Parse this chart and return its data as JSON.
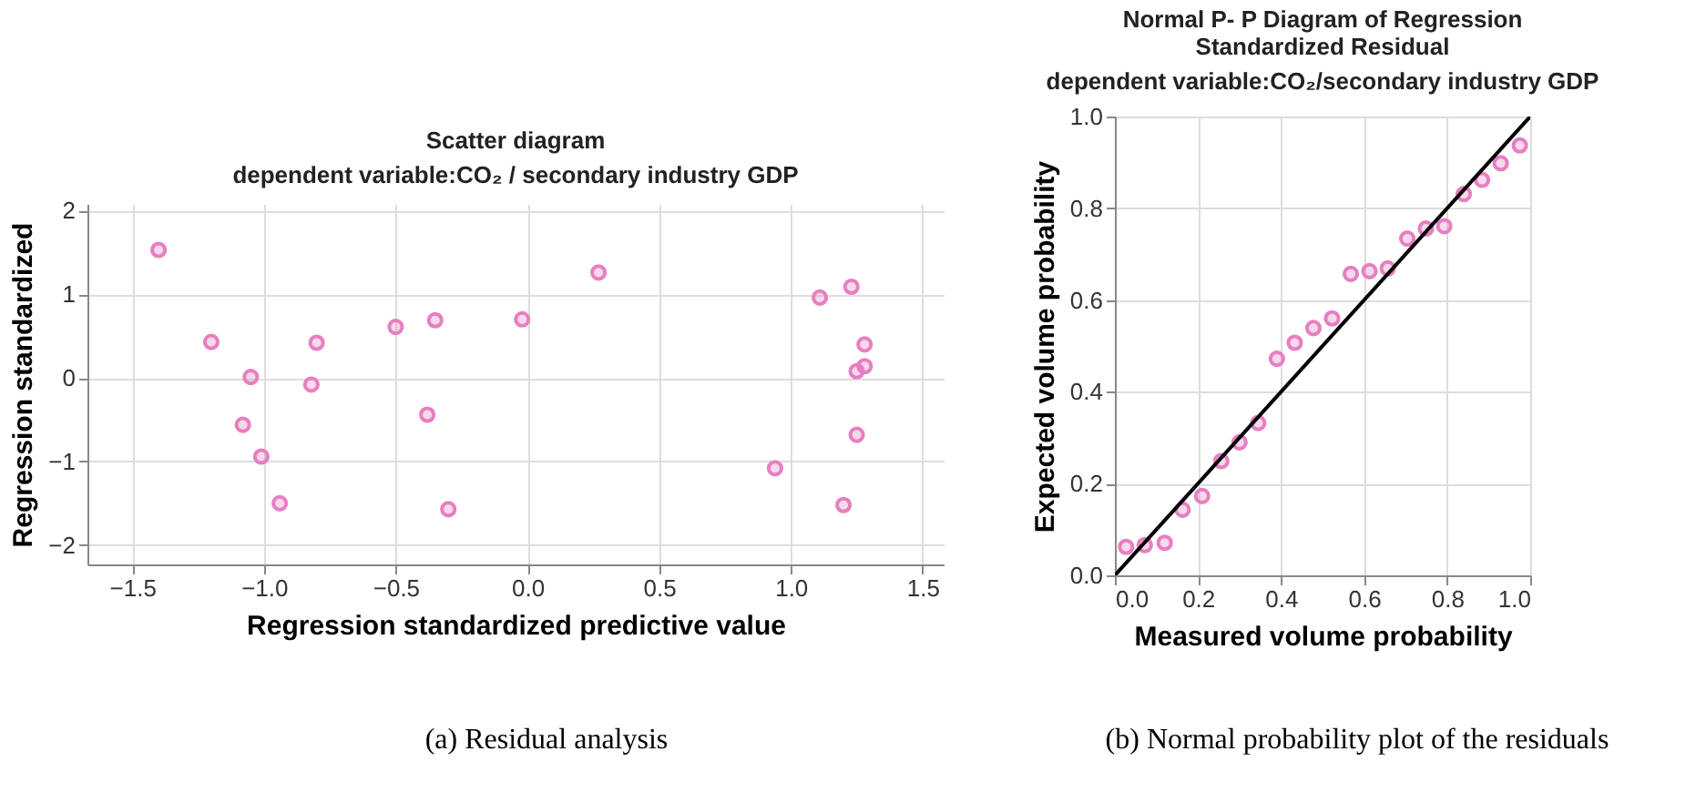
{
  "chart_data": [
    {
      "type": "scatter",
      "title": "Scatter diagram",
      "subtitle": "dependent variable:CO₂ / secondary industry GDP",
      "xlabel": "Regression standardized predictive value",
      "ylabel": "Regression standardized",
      "annotations": [
        "(a) Residual analysis"
      ],
      "xlim": [
        -1.67,
        1.58
      ],
      "ylim": [
        -2.23,
        2.08
      ],
      "xticks": [
        -1.5,
        {
          "value": -1,
          "label": "−1.0"
        },
        -0.5,
        {
          "value": 0,
          "label": "0.0"
        },
        0.5,
        {
          "value": 1,
          "label": "1.0"
        },
        1.5
      ],
      "yticks": [
        -2,
        -1,
        0,
        1,
        2
      ],
      "grid": true,
      "marker": "circle",
      "series": [
        {
          "color": "#e67fc0",
          "x": [
            -1.4,
            -1.2,
            -1.05,
            -1.08,
            -1.01,
            -0.94,
            -0.8,
            -0.82,
            -0.5,
            -0.35,
            -0.38,
            -0.3,
            -0.02,
            0.27,
            1.11,
            1.23,
            1.28,
            1.28,
            1.25,
            1.25,
            0.94,
            1.2
          ],
          "values": [
            1.53,
            0.43,
            0.01,
            -0.56,
            -0.94,
            -1.5,
            0.42,
            -0.08,
            0.61,
            0.69,
            -0.44,
            -1.57,
            0.7,
            1.26,
            0.96,
            1.09,
            0.4,
            0.14,
            0.08,
            -0.68,
            -1.08,
            -1.52
          ]
        }
      ]
    },
    {
      "type": "scatter",
      "title": "Normal P- P Diagram of Regression Standardized Residual",
      "subtitle": "dependent variable:CO₂/secondary industry GDP",
      "xlabel": "Measured volume probability",
      "ylabel": "Expected volume probability",
      "annotations": [
        "(b) Normal probability plot of the residuals"
      ],
      "xlim": [
        0,
        1
      ],
      "ylim": [
        0,
        1
      ],
      "xticks": [
        {
          "value": 0,
          "label": "0.0"
        },
        0.2,
        0.4,
        0.6,
        0.8,
        {
          "value": 1,
          "label": "1.0"
        }
      ],
      "yticks": [
        {
          "value": 0,
          "label": "0.0"
        },
        0.2,
        0.4,
        0.6,
        0.8,
        {
          "value": 1,
          "label": "1.0"
        }
      ],
      "grid": true,
      "series": [
        {
          "marker": "circle",
          "color": "#e67fc0",
          "x": [
            0.027,
            0.072,
            0.12,
            0.163,
            0.21,
            0.256,
            0.3,
            0.345,
            0.39,
            0.433,
            0.478,
            0.523,
            0.568,
            0.613,
            0.657,
            0.704,
            0.749,
            0.793,
            0.84,
            0.884,
            0.929,
            0.975
          ],
          "values": [
            0.062,
            0.066,
            0.071,
            0.143,
            0.173,
            0.249,
            0.29,
            0.332,
            0.472,
            0.507,
            0.539,
            0.56,
            0.657,
            0.663,
            0.669,
            0.734,
            0.756,
            0.761,
            0.831,
            0.862,
            0.898,
            0.937
          ]
        },
        {
          "type": "line",
          "color": "#000000",
          "x": [
            0,
            1
          ],
          "values": [
            0,
            1
          ]
        }
      ]
    }
  ]
}
